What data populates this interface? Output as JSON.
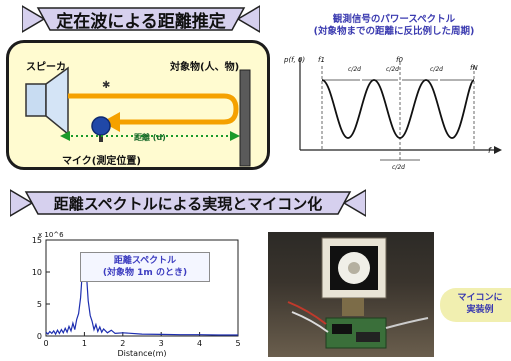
{
  "banners": {
    "top": "定在波による距離推定",
    "middle": "距離スペクトルによる実現とマイコン化"
  },
  "diagram": {
    "speaker": "スピーカ",
    "object": "対象物(人、物)",
    "mic": "マイク(測定位置)",
    "distance": "距離 (d)"
  },
  "spectrum": {
    "title_line1": "観測信号のパワースペクトル",
    "title_line2": "(対象物までの距離に反比例した周期)",
    "y_axis": "p(f, 0)",
    "f_axis": "f",
    "f1": "f1",
    "f0": "f0",
    "fN": "fN",
    "period_label_1": "c/2d",
    "period_label_2": "c/2d",
    "period_label_3": "c/2d",
    "period_label_bottom": "c/2d"
  },
  "chart_data": {
    "type": "line",
    "title_line1": "距離スペクトル",
    "title_line2": "(対象物 1m のとき)",
    "xlabel": "Distance(m)",
    "ylabel": "",
    "exponent": "x 10^6",
    "xlim": [
      0,
      5
    ],
    "ylim": [
      0,
      15
    ],
    "xticks": [
      "0",
      "1",
      "2",
      "3",
      "4",
      "5"
    ],
    "yticks": [
      "0",
      "5",
      "10",
      "15"
    ],
    "x": [
      0,
      0.05,
      0.1,
      0.15,
      0.2,
      0.25,
      0.3,
      0.35,
      0.4,
      0.45,
      0.5,
      0.55,
      0.6,
      0.65,
      0.7,
      0.75,
      0.8,
      0.85,
      0.9,
      0.95,
      1.0,
      1.05,
      1.1,
      1.15,
      1.2,
      1.25,
      1.3,
      1.35,
      1.4,
      1.45,
      1.5,
      1.6,
      1.7,
      1.8,
      2.0,
      2.5,
      3.0,
      3.5,
      4.0,
      4.5,
      5.0
    ],
    "values": [
      0.6,
      0.3,
      0.7,
      0.4,
      0.8,
      0.3,
      0.9,
      0.4,
      1.0,
      0.5,
      1.2,
      0.6,
      1.5,
      0.8,
      2.0,
      1.0,
      2.6,
      3.5,
      6.0,
      10.5,
      12.3,
      10.0,
      5.5,
      3.2,
      2.3,
      1.0,
      1.8,
      0.7,
      1.4,
      0.6,
      1.1,
      0.5,
      0.9,
      0.4,
      0.5,
      0.3,
      0.25,
      0.2,
      0.2,
      0.15,
      0.15
    ]
  },
  "side_note": {
    "line1": "マイコンに",
    "line2": "実装例"
  },
  "colors": {
    "banner_fill": "#d6d0ee",
    "banner_text": "#101010",
    "panel_bg": "#fffbd0",
    "arrow_orange": "#f5a100",
    "arrow_blue": "#2048a8",
    "dotted_green": "#1a9a2a",
    "chart_line": "#1e2fb0",
    "title_blue": "#3b3bb0"
  }
}
